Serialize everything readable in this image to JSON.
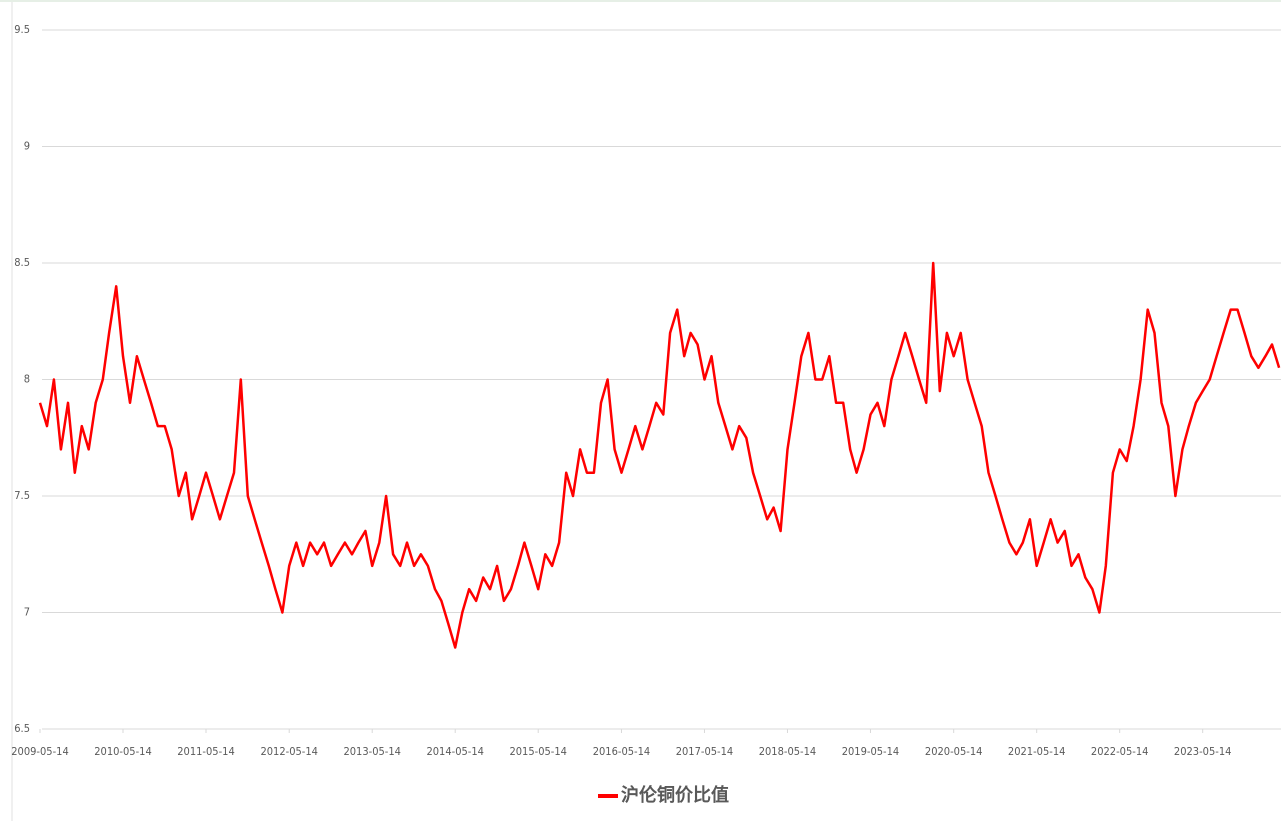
{
  "chart_data": {
    "type": "line",
    "x": [
      "2009-05-14",
      "2009-06-14",
      "2009-07-14",
      "2009-08-14",
      "2009-09-14",
      "2009-10-14",
      "2009-11-14",
      "2009-12-14",
      "2010-01-14",
      "2010-02-14",
      "2010-03-14",
      "2010-04-14",
      "2010-05-14",
      "2010-06-14",
      "2010-07-14",
      "2010-08-14",
      "2010-09-14",
      "2010-10-14",
      "2010-11-14",
      "2010-12-14",
      "2011-01-14",
      "2011-02-14",
      "2011-03-14",
      "2011-04-14",
      "2011-05-14",
      "2011-06-14",
      "2011-07-14",
      "2011-08-14",
      "2011-09-14",
      "2011-10-14",
      "2011-11-14",
      "2011-12-14",
      "2012-01-14",
      "2012-02-14",
      "2012-03-14",
      "2012-04-14",
      "2012-05-14",
      "2012-06-14",
      "2012-07-14",
      "2012-08-14",
      "2012-09-14",
      "2012-10-14",
      "2012-11-14",
      "2012-12-14",
      "2013-01-14",
      "2013-02-14",
      "2013-03-14",
      "2013-04-14",
      "2013-05-14",
      "2013-06-14",
      "2013-07-14",
      "2013-08-14",
      "2013-09-14",
      "2013-10-14",
      "2013-11-14",
      "2013-12-14",
      "2014-01-14",
      "2014-02-14",
      "2014-03-14",
      "2014-04-14",
      "2014-05-14",
      "2014-06-14",
      "2014-07-14",
      "2014-08-14",
      "2014-09-14",
      "2014-10-14",
      "2014-11-14",
      "2014-12-14",
      "2015-01-14",
      "2015-02-14",
      "2015-03-14",
      "2015-04-14",
      "2015-05-14",
      "2015-06-14",
      "2015-07-14",
      "2015-08-14",
      "2015-09-14",
      "2015-10-14",
      "2015-11-14",
      "2015-12-14",
      "2016-01-14",
      "2016-02-14",
      "2016-03-14",
      "2016-04-14",
      "2016-05-14",
      "2016-06-14",
      "2016-07-14",
      "2016-08-14",
      "2016-09-14",
      "2016-10-14",
      "2016-11-14",
      "2016-12-14",
      "2017-01-14",
      "2017-02-14",
      "2017-03-14",
      "2017-04-14",
      "2017-05-14",
      "2017-06-14",
      "2017-07-14",
      "2017-08-14",
      "2017-09-14",
      "2017-10-14",
      "2017-11-14",
      "2017-12-14",
      "2018-01-14",
      "2018-02-14",
      "2018-03-14",
      "2018-04-14",
      "2018-05-14",
      "2018-06-14",
      "2018-07-14",
      "2018-08-14",
      "2018-09-14",
      "2018-10-14",
      "2018-11-14",
      "2018-12-14",
      "2019-01-14",
      "2019-02-14",
      "2019-03-14",
      "2019-04-14",
      "2019-05-14",
      "2019-06-14",
      "2019-07-14",
      "2019-08-14",
      "2019-09-14",
      "2019-10-14",
      "2019-11-14",
      "2019-12-14",
      "2020-01-14",
      "2020-02-14",
      "2020-03-14",
      "2020-04-14",
      "2020-05-14",
      "2020-06-14",
      "2020-07-14",
      "2020-08-14",
      "2020-09-14",
      "2020-10-14",
      "2020-11-14",
      "2020-12-14",
      "2021-01-14",
      "2021-02-14",
      "2021-03-14",
      "2021-04-14",
      "2021-05-14",
      "2021-06-14",
      "2021-07-14",
      "2021-08-14",
      "2021-09-14",
      "2021-10-14",
      "2021-11-14",
      "2021-12-14",
      "2022-01-14",
      "2022-02-14",
      "2022-03-14",
      "2022-04-14",
      "2022-05-14",
      "2022-06-14",
      "2022-07-14",
      "2022-08-14",
      "2022-09-14",
      "2022-10-14",
      "2022-11-14",
      "2022-12-14",
      "2023-01-14",
      "2023-02-14",
      "2023-03-14",
      "2023-04-14",
      "2023-05-14",
      "2023-06-14",
      "2023-07-14",
      "2023-08-14",
      "2023-09-14",
      "2023-10-14",
      "2023-11-14",
      "2023-12-14",
      "2024-01-14",
      "2024-02-14",
      "2024-03-14",
      "2024-04-14"
    ],
    "series": [
      {
        "name": "沪伦铜价比值",
        "color": "#ff0000",
        "values": [
          7.9,
          7.8,
          8.0,
          7.7,
          7.9,
          7.6,
          7.8,
          7.7,
          7.9,
          8.0,
          8.2,
          8.4,
          8.1,
          7.9,
          8.1,
          8.0,
          7.9,
          7.8,
          7.8,
          7.7,
          7.5,
          7.6,
          7.4,
          7.5,
          7.6,
          7.5,
          7.4,
          7.5,
          7.6,
          8.0,
          7.5,
          7.4,
          7.3,
          7.2,
          7.1,
          7.0,
          7.2,
          7.3,
          7.2,
          7.3,
          7.25,
          7.3,
          7.2,
          7.25,
          7.3,
          7.25,
          7.3,
          7.35,
          7.2,
          7.3,
          7.5,
          7.25,
          7.2,
          7.3,
          7.2,
          7.25,
          7.2,
          7.1,
          7.05,
          6.95,
          6.85,
          7.0,
          7.1,
          7.05,
          7.15,
          7.1,
          7.2,
          7.05,
          7.1,
          7.2,
          7.3,
          7.2,
          7.1,
          7.25,
          7.2,
          7.3,
          7.6,
          7.5,
          7.7,
          7.6,
          7.6,
          7.9,
          8.0,
          7.7,
          7.6,
          7.7,
          7.8,
          7.7,
          7.8,
          7.9,
          7.85,
          8.2,
          8.3,
          8.1,
          8.2,
          8.15,
          8.0,
          8.1,
          7.9,
          7.8,
          7.7,
          7.8,
          7.75,
          7.6,
          7.5,
          7.4,
          7.45,
          7.35,
          7.7,
          7.9,
          8.1,
          8.2,
          8.0,
          8.0,
          8.1,
          7.9,
          7.9,
          7.7,
          7.6,
          7.7,
          7.85,
          7.9,
          7.8,
          8.0,
          8.1,
          8.2,
          8.1,
          8.0,
          7.9,
          8.5,
          7.95,
          8.2,
          8.1,
          8.2,
          8.0,
          7.9,
          7.8,
          7.6,
          7.5,
          7.4,
          7.3,
          7.25,
          7.3,
          7.4,
          7.2,
          7.3,
          7.4,
          7.3,
          7.35,
          7.2,
          7.25,
          7.15,
          7.1,
          7.0,
          7.2,
          7.6,
          7.7,
          7.65,
          7.8,
          8.0,
          8.3,
          8.2,
          7.9,
          7.8,
          7.5,
          7.7,
          7.8,
          7.9,
          7.95,
          8.0,
          8.1,
          8.2,
          8.3,
          8.3,
          8.2,
          8.1,
          8.05,
          8.1,
          8.15,
          8.05
        ]
      }
    ],
    "xlim": [
      "2009-05-14",
      "2024-05-10"
    ],
    "xticks": [
      "2009-05-14",
      "2010-05-14",
      "2011-05-14",
      "2012-05-14",
      "2013-05-14",
      "2014-05-14",
      "2015-05-14",
      "2016-05-14",
      "2017-05-14",
      "2018-05-14",
      "2019-05-14",
      "2020-05-14",
      "2021-05-14",
      "2022-05-14",
      "2023-05-14"
    ],
    "ylim": [
      6.5,
      9.5
    ],
    "yticks": [
      6.5,
      7,
      7.5,
      8,
      8.5,
      9,
      9.5
    ],
    "grid": true,
    "legend": "bottom"
  }
}
